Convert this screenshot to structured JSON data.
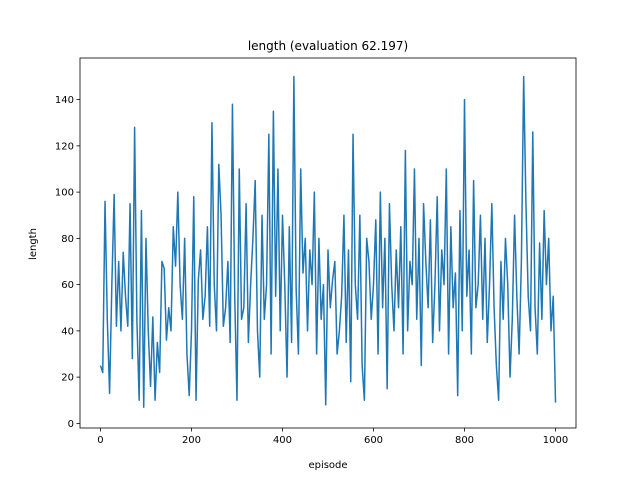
{
  "chart_data": {
    "type": "line",
    "title": "length (evaluation 62.197)",
    "xlabel": "episode",
    "ylabel": "length",
    "xlim": [
      -45,
      1045
    ],
    "ylim": [
      -2,
      158
    ],
    "xticks": [
      0,
      200,
      400,
      600,
      800,
      1000
    ],
    "yticks": [
      0,
      20,
      40,
      60,
      80,
      100,
      120,
      140
    ],
    "grid": false,
    "legend": "none",
    "series": [
      {
        "color": "#1f77b4",
        "x": [
          0,
          5,
          10,
          15,
          20,
          25,
          30,
          35,
          40,
          45,
          50,
          55,
          60,
          65,
          70,
          75,
          80,
          85,
          90,
          95,
          100,
          105,
          110,
          115,
          120,
          125,
          130,
          135,
          140,
          145,
          150,
          155,
          160,
          165,
          170,
          175,
          180,
          185,
          190,
          195,
          200,
          205,
          210,
          215,
          220,
          225,
          230,
          235,
          240,
          245,
          250,
          255,
          260,
          265,
          270,
          275,
          280,
          285,
          290,
          295,
          300,
          305,
          310,
          315,
          320,
          325,
          330,
          335,
          340,
          345,
          350,
          355,
          360,
          365,
          370,
          375,
          380,
          385,
          390,
          395,
          400,
          405,
          410,
          415,
          420,
          425,
          430,
          435,
          440,
          445,
          450,
          455,
          460,
          465,
          470,
          475,
          480,
          485,
          490,
          495,
          500,
          505,
          510,
          515,
          520,
          525,
          530,
          535,
          540,
          545,
          550,
          555,
          560,
          565,
          570,
          575,
          580,
          585,
          590,
          595,
          600,
          605,
          610,
          615,
          620,
          625,
          630,
          635,
          640,
          645,
          650,
          655,
          660,
          665,
          670,
          675,
          680,
          685,
          690,
          695,
          700,
          705,
          710,
          715,
          720,
          725,
          730,
          735,
          740,
          745,
          750,
          755,
          760,
          765,
          770,
          775,
          780,
          785,
          790,
          795,
          800,
          805,
          810,
          815,
          820,
          825,
          830,
          835,
          840,
          845,
          850,
          855,
          860,
          865,
          870,
          875,
          880,
          885,
          890,
          895,
          900,
          905,
          910,
          915,
          920,
          925,
          930,
          935,
          940,
          945,
          950,
          955,
          960,
          965,
          970,
          975,
          980,
          985,
          990,
          995,
          1000
        ],
        "y": [
          25,
          22,
          96,
          45,
          13,
          60,
          99,
          42,
          70,
          40,
          74,
          55,
          42,
          95,
          28,
          128,
          45,
          10,
          92,
          7,
          80,
          40,
          16,
          46,
          10,
          35,
          22,
          70,
          67,
          36,
          50,
          40,
          85,
          68,
          100,
          60,
          45,
          80,
          30,
          12,
          40,
          98,
          10,
          62,
          75,
          45,
          55,
          85,
          42,
          130,
          60,
          40,
          112,
          90,
          42,
          50,
          70,
          35,
          138,
          55,
          10,
          110,
          45,
          50,
          95,
          35,
          60,
          80,
          105,
          40,
          20,
          90,
          45,
          60,
          125,
          30,
          135,
          55,
          110,
          40,
          90,
          60,
          20,
          85,
          35,
          150,
          58,
          30,
          110,
          65,
          80,
          40,
          75,
          60,
          100,
          30,
          80,
          45,
          60,
          8,
          75,
          50,
          62,
          70,
          30,
          40,
          55,
          90,
          35,
          75,
          18,
          125,
          60,
          45,
          90,
          25,
          10,
          80,
          70,
          45,
          60,
          88,
          30,
          100,
          50,
          80,
          15,
          95,
          60,
          40,
          75,
          50,
          85,
          30,
          118,
          40,
          70,
          60,
          110,
          45,
          80,
          25,
          95,
          70,
          50,
          88,
          35,
          60,
          98,
          40,
          75,
          60,
          110,
          30,
          85,
          50,
          65,
          12,
          92,
          40,
          140,
          55,
          75,
          30,
          105,
          50,
          60,
          90,
          45,
          80,
          35,
          60,
          95,
          50,
          25,
          10,
          70,
          45,
          80,
          60,
          20,
          45,
          90,
          55,
          30,
          70,
          150,
          95,
          55,
          40,
          126,
          50,
          30,
          78,
          45,
          92,
          60,
          80,
          40,
          55,
          9
        ]
      }
    ]
  }
}
